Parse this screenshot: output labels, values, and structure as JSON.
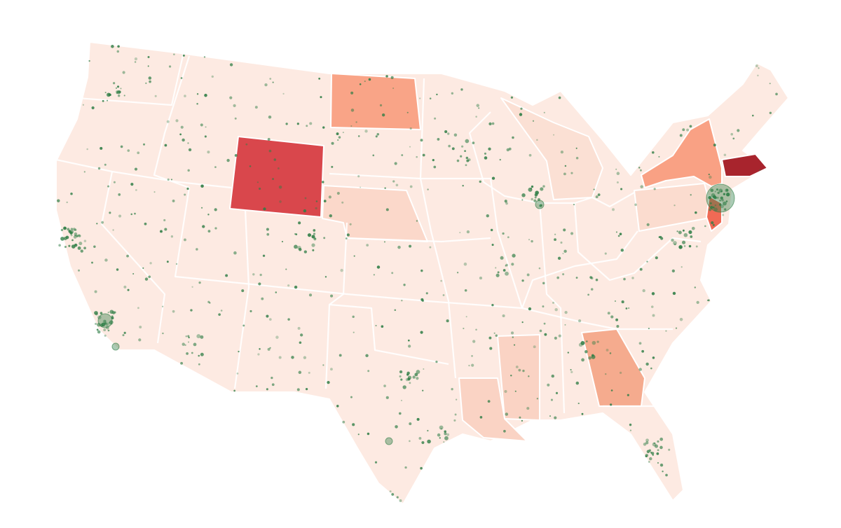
{
  "map": {
    "base_color": "#fdeae2",
    "border_color": "#ffffff",
    "point_color": "#2e7d45",
    "regions": [
      {
        "color": "#d9474c"
      },
      {
        "color": "#f9a487"
      },
      {
        "color": "#fbd8ca"
      },
      {
        "color": "#f9a184"
      },
      {
        "color": "#fbdccf"
      },
      {
        "color": "#f06a55"
      },
      {
        "color": "#a8242d"
      },
      {
        "color": "#f5ab8e"
      },
      {
        "color": "#fad3c4"
      },
      {
        "color": "#fad3c4"
      },
      {
        "color": "#fbe0d4"
      }
    ]
  }
}
